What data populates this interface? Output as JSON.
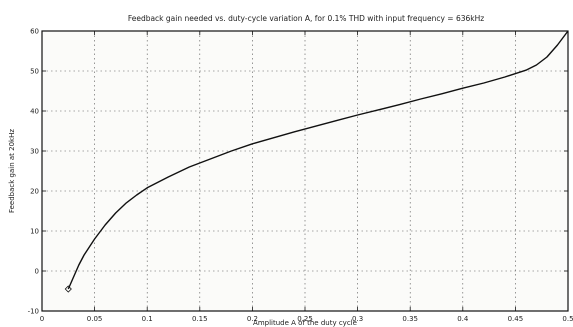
{
  "chart_data": {
    "type": "line",
    "title": "Feedback gain needed vs. duty-cycle variation A, for 0.1% THD with input frequency = 636kHz",
    "xlabel": "Amplitude A of the duty cycle",
    "ylabel": "Feedback gain at 20kHz",
    "xlim": [
      0,
      0.5
    ],
    "ylim": [
      -10,
      60
    ],
    "xticks": [
      0,
      0.05,
      0.1,
      0.15,
      0.2,
      0.25,
      0.3,
      0.35,
      0.4,
      0.45,
      0.5
    ],
    "yticks": [
      -10,
      0,
      10,
      20,
      30,
      40,
      50,
      60
    ],
    "xtick_labels": [
      "0",
      "0.05",
      "0.1",
      "0.15",
      "0.2",
      "0.25",
      "0.3",
      "0.35",
      "0.4",
      "0.45",
      "0.5"
    ],
    "ytick_labels": [
      "-10",
      "0",
      "10",
      "20",
      "30",
      "40",
      "50",
      "60"
    ],
    "grid": true,
    "series": [
      {
        "x": [
          0.025,
          0.03,
          0.035,
          0.04,
          0.045,
          0.05,
          0.06,
          0.07,
          0.08,
          0.09,
          0.1,
          0.12,
          0.14,
          0.16,
          0.18,
          0.2,
          0.22,
          0.24,
          0.26,
          0.28,
          0.3,
          0.32,
          0.34,
          0.36,
          0.38,
          0.4,
          0.42,
          0.44,
          0.46,
          0.47,
          0.48,
          0.49,
          0.5
        ],
        "y": [
          -4.5,
          -1.5,
          1.5,
          4.0,
          6.0,
          8.0,
          11.5,
          14.5,
          17.0,
          19.0,
          20.8,
          23.5,
          26.0,
          28.0,
          30.0,
          31.8,
          33.3,
          34.8,
          36.2,
          37.6,
          39.0,
          40.3,
          41.6,
          43.0,
          44.3,
          45.7,
          47.0,
          48.5,
          50.2,
          51.5,
          53.5,
          56.5,
          60.0
        ]
      }
    ],
    "marker_point": {
      "x": 0.025,
      "y": -4.5
    }
  }
}
